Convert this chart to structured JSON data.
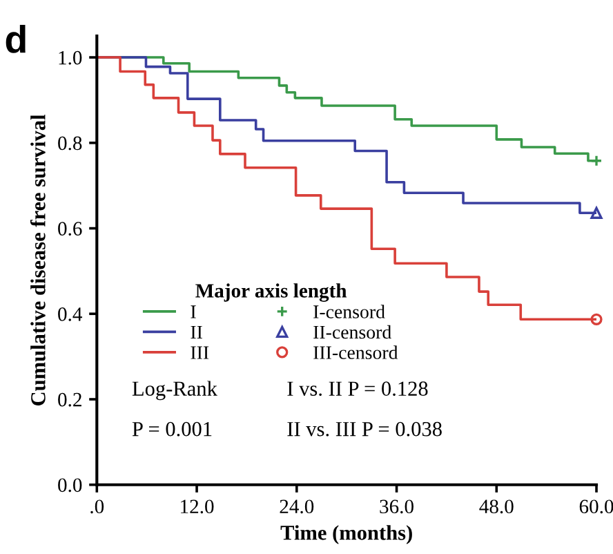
{
  "chart_data": {
    "type": "step",
    "xlabel": "Time (months)",
    "ylabel": "Cumulative disease free survival",
    "legend_title": "Major axis length",
    "legend": "left",
    "grid": false,
    "xlim": [
      0,
      60
    ],
    "xticks": [
      {
        "value": 0,
        "label": ".0"
      },
      {
        "value": 12,
        "label": "12.0"
      },
      {
        "value": 24,
        "label": "24.0"
      },
      {
        "value": 36,
        "label": "36.0"
      },
      {
        "value": 48,
        "label": "48.0"
      },
      {
        "value": 60,
        "label": "60.0"
      }
    ],
    "ylim": [
      0,
      1.05
    ],
    "yticks": [
      {
        "value": 0,
        "label": "0.0"
      },
      {
        "value": 0.2,
        "label": "0.2"
      },
      {
        "value": 0.4,
        "label": "0.4"
      },
      {
        "value": 0.6,
        "label": "0.6"
      },
      {
        "value": 0.8,
        "label": "0.8"
      },
      {
        "value": 1,
        "label": "1.0"
      }
    ],
    "series": [
      {
        "name": "I",
        "color": "#3a9a4a",
        "marker": "none",
        "x": [
          0,
          8,
          11.1,
          17,
          21.9,
          22.8,
          23.8,
          27,
          35.8,
          37.8,
          48,
          51,
          55,
          59,
          60
        ],
        "values": [
          1,
          0.986,
          0.967,
          0.952,
          0.934,
          0.918,
          0.905,
          0.887,
          0.855,
          0.84,
          0.808,
          0.79,
          0.775,
          0.758,
          0.758
        ]
      },
      {
        "name": "II",
        "color": "#3a3fa0",
        "marker": "none",
        "x": [
          0,
          5.9,
          8.8,
          10.9,
          14.8,
          19.1,
          20,
          31,
          34.8,
          36.9,
          44,
          58,
          60
        ],
        "values": [
          1,
          0.978,
          0.963,
          0.903,
          0.853,
          0.832,
          0.805,
          0.781,
          0.708,
          0.683,
          0.659,
          0.636,
          0.636
        ]
      },
      {
        "name": "III",
        "color": "#d9403a",
        "marker": "none",
        "x": [
          0,
          2.8,
          5.8,
          6.8,
          9.8,
          11.7,
          13.9,
          14.8,
          17.8,
          23.9,
          26.9,
          33,
          35.8,
          42,
          45.9,
          47,
          50.9,
          60
        ],
        "values": [
          1,
          0.967,
          0.936,
          0.905,
          0.871,
          0.84,
          0.806,
          0.774,
          0.742,
          0.677,
          0.646,
          0.552,
          0.518,
          0.486,
          0.452,
          0.421,
          0.387,
          0.387
        ]
      },
      {
        "name": "I-censord",
        "color": "#3a9a4a",
        "type": "scatter",
        "marker": "cross",
        "x": [
          60
        ],
        "values": [
          0.758
        ]
      },
      {
        "name": "II-censord",
        "color": "#3a3fa0",
        "type": "scatter",
        "marker": "triangle",
        "x": [
          60
        ],
        "values": [
          0.636
        ]
      },
      {
        "name": "III-censord",
        "color": "#d9403a",
        "type": "scatter",
        "marker": "circle",
        "x": [
          60
        ],
        "values": [
          0.387
        ]
      }
    ],
    "annotations": [
      "d",
      "Log-Rank",
      "P = 0.001",
      "I vs. II P = 0.128",
      "II vs. III P = 0.038"
    ]
  }
}
